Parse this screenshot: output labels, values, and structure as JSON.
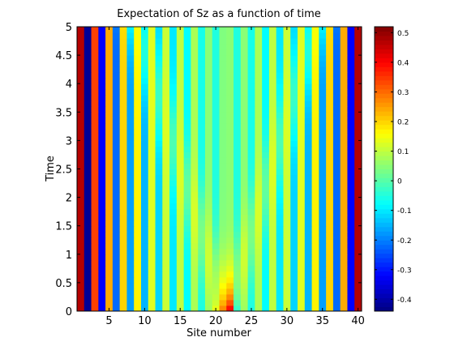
{
  "chart_data": {
    "type": "heatmap",
    "title": "Expectation of Sz as a function of time",
    "xlabel": "Site number",
    "ylabel": "Time",
    "x_range": [
      0.5,
      40.5
    ],
    "y_range": [
      0,
      5
    ],
    "x_ticks": [
      5,
      10,
      15,
      20,
      25,
      30,
      35,
      40
    ],
    "y_ticks": [
      0,
      0.5,
      1,
      1.5,
      2,
      2.5,
      3,
      3.5,
      4,
      4.5,
      5
    ],
    "colorbar": {
      "colormap": "jet",
      "range": [
        -0.44,
        0.52
      ],
      "ticks": [
        0.5,
        0.4,
        0.3,
        0.2,
        0.1,
        0,
        -0.1,
        -0.2,
        -0.3,
        -0.4
      ],
      "tick_labels": [
        "0.5",
        "0.4",
        "0.3",
        "0.2",
        "0.1",
        "0",
        "-0.1",
        "-0.2",
        "-0.3",
        "-0.4"
      ]
    },
    "sites": 40,
    "time_rows": 50,
    "time_step": 0.1,
    "site_base_values": [
      0.47,
      -0.42,
      0.34,
      -0.32,
      0.24,
      -0.22,
      0.2,
      -0.17,
      0.17,
      -0.15,
      0.13,
      -0.12,
      0.11,
      -0.1,
      0.1,
      -0.08,
      0.08,
      -0.06,
      0.05,
      -0.05,
      0.04,
      0.05,
      -0.05,
      0.05,
      -0.06,
      0.08,
      -0.08,
      0.1,
      -0.1,
      0.11,
      -0.12,
      0.13,
      -0.15,
      0.17,
      -0.17,
      0.2,
      -0.22,
      0.24,
      -0.32,
      0.47
    ],
    "initial_center_values": {
      "20": 0.12,
      "21": 0.3,
      "22": 0.5,
      "23": -0.12
    },
    "wave_center": 21.5,
    "wave_speed": 2.5,
    "wave_width": 1.4,
    "wave_amplitude": 0.1,
    "decay_time": 0.35
  },
  "axes": {
    "title": "Expectation of Sz as a function of time",
    "xlabel": "Site number",
    "ylabel": "Time"
  }
}
